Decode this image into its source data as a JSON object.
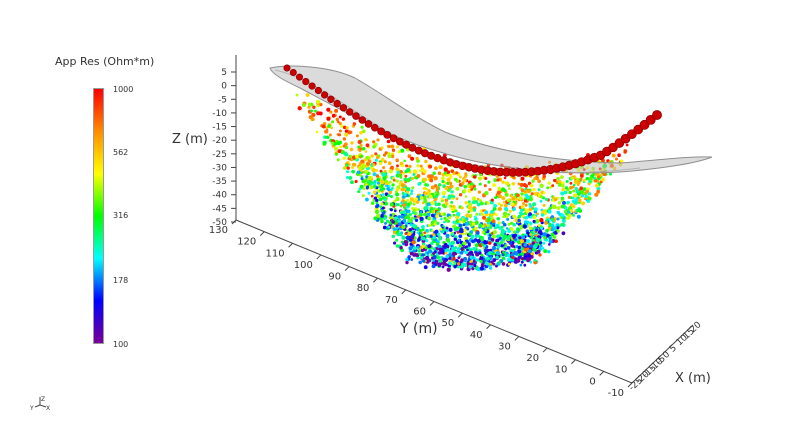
{
  "colorbar": {
    "title": "App Res (Ohm*m)",
    "ticks": [
      "1000",
      "562",
      "316",
      "178",
      "100"
    ],
    "colors": [
      "#ff0000",
      "#ff8c00",
      "#ffff00",
      "#00ff00",
      "#00ffff",
      "#0000ff",
      "#7a0099"
    ]
  },
  "chart_data": {
    "type": "scatter",
    "dimensions": 3,
    "xlabel": "X (m)",
    "ylabel": "Y (m)",
    "zlabel": "Z (m)",
    "x_ticks": [
      "-25",
      "-20",
      "-15",
      "-10",
      "-5",
      "0",
      "5",
      "10",
      "15",
      "20"
    ],
    "y_ticks": [
      "-10",
      "0",
      "10",
      "20",
      "30",
      "40",
      "50",
      "60",
      "70",
      "80",
      "90",
      "100",
      "110",
      "120",
      "130"
    ],
    "z_ticks": [
      "5",
      "0",
      "-5",
      "-10",
      "-15",
      "-20",
      "-25",
      "-30",
      "-35",
      "-40",
      "-45",
      "-50"
    ],
    "xlim": [
      -25,
      20
    ],
    "ylim": [
      -10,
      130
    ],
    "zlim": [
      -50,
      5
    ],
    "color_scale": {
      "variable": "App Res (Ohm*m)",
      "range": [
        100,
        1000
      ],
      "scale": "log"
    },
    "point_cloud_description_values": {
      "approx_points": 3000
    },
    "electrodes": {
      "color": "#cc0000",
      "approx_count": 60
    },
    "surface": {
      "color": "#b0b0b0",
      "opacity": 0.6
    }
  },
  "orientation_widget": {
    "labels": [
      "Y",
      "Z",
      "X"
    ]
  }
}
